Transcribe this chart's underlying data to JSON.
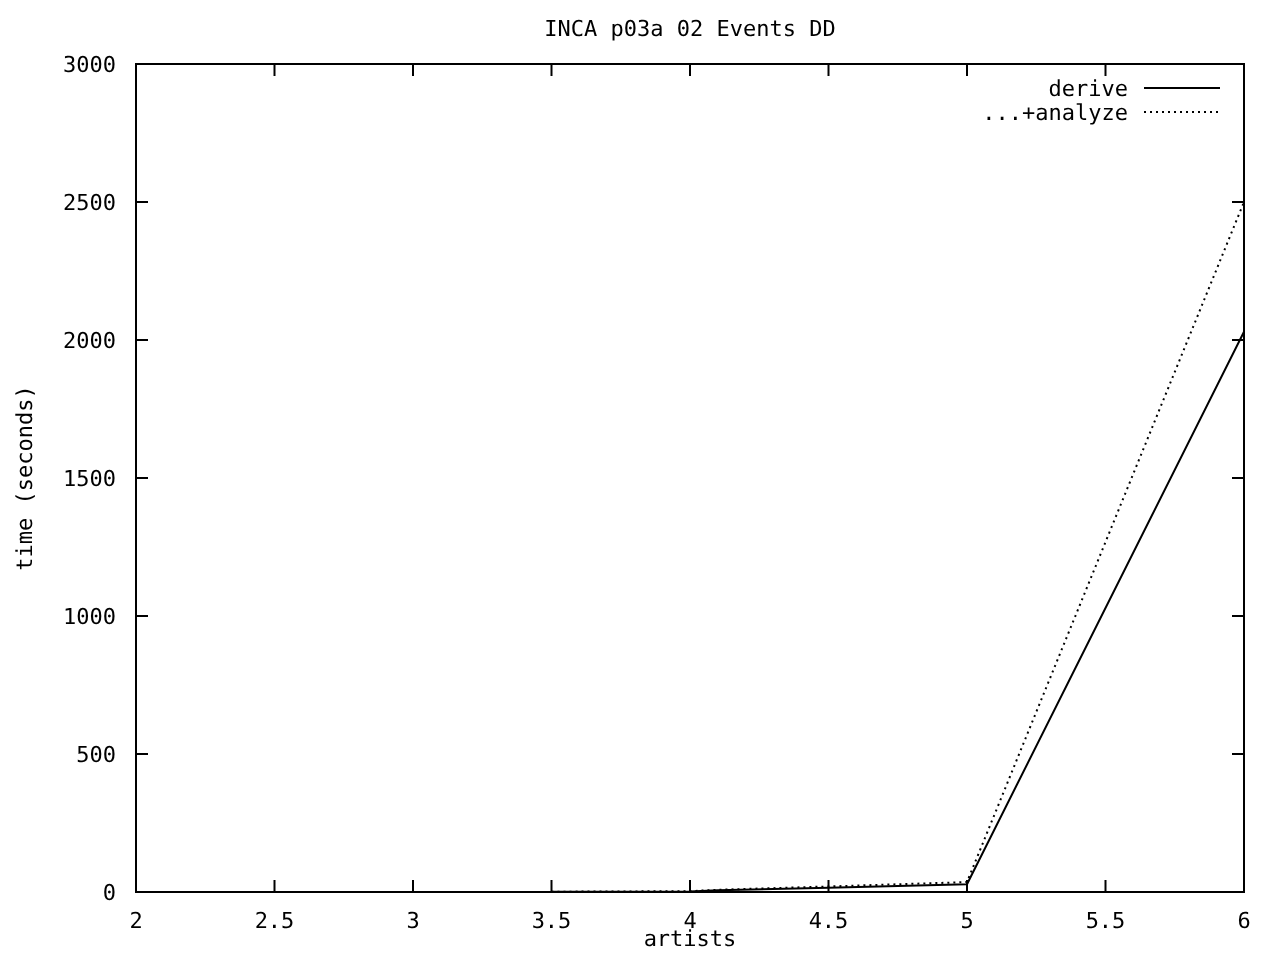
{
  "chart_data": {
    "type": "line",
    "title": "INCA p03a 02 Events DD",
    "xlabel": "artists",
    "ylabel": "time (seconds)",
    "xlim": [
      2,
      6
    ],
    "xticks": [
      2,
      2.5,
      3,
      3.5,
      4,
      4.5,
      5,
      5.5,
      6
    ],
    "ylim": [
      0,
      3000
    ],
    "yticks": [
      0,
      500,
      1000,
      1500,
      2000,
      2500,
      3000
    ],
    "grid": false,
    "legend": "top right",
    "marker": "none",
    "series": [
      {
        "name": "derive",
        "color": "#000000",
        "line_style": "solid",
        "x": [
          3.5,
          4,
          4.1,
          4.5,
          4.75,
          5,
          6
        ],
        "values": [
          1,
          2,
          6,
          15,
          22,
          28,
          2030
        ]
      },
      {
        "name": "...+analyze",
        "color": "#000000",
        "line_style": "dotted",
        "x": [
          3.5,
          4,
          4.1,
          4.5,
          4.75,
          5,
          6
        ],
        "values": [
          1,
          3,
          8,
          20,
          28,
          36,
          2500
        ]
      }
    ]
  }
}
